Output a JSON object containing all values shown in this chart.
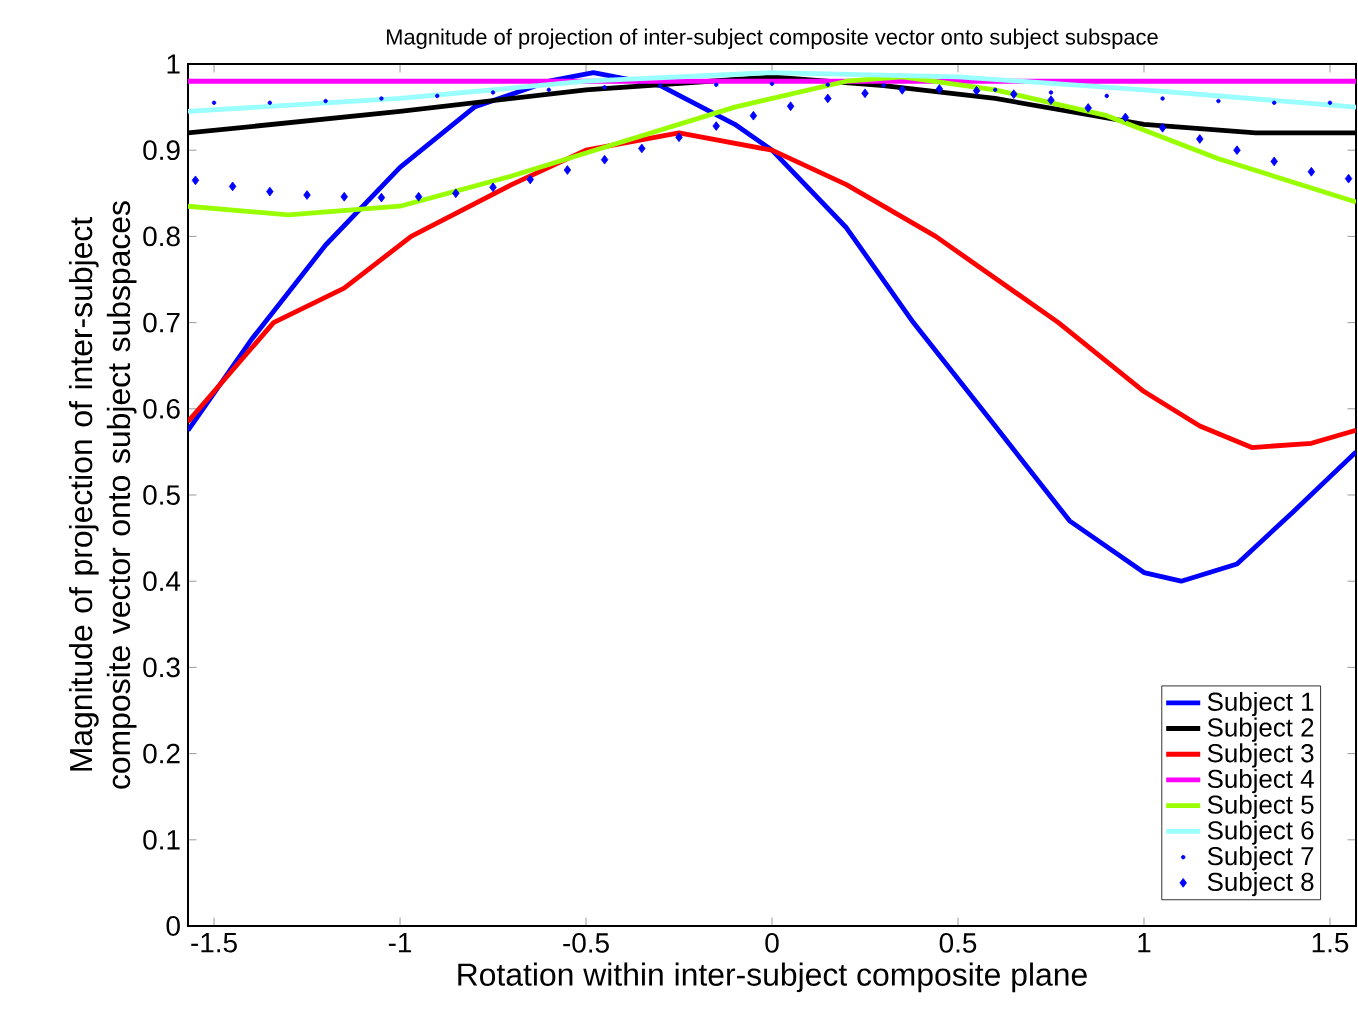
{
  "chart_data": {
    "type": "line",
    "title": "Magnitude of projection of inter-subject composite vector onto subject subspace",
    "xlabel": "Rotation within inter-subject composite plane",
    "ylabel": "Magnitude of projection of inter-subject composite vector onto subject subspaces",
    "xlim": [
      -1.57,
      1.57
    ],
    "ylim": [
      0,
      1
    ],
    "xticks": [
      -1.5,
      -1,
      -0.5,
      0,
      0.5,
      1,
      1.5
    ],
    "yticks": [
      0,
      0.1,
      0.2,
      0.3,
      0.4,
      0.5,
      0.6,
      0.7,
      0.8,
      0.9,
      1
    ],
    "grid": false,
    "legend": "bottom right",
    "series": [
      {
        "name": "Subject 1",
        "color": "#0000ff",
        "x": [
          -1.57,
          -1.4,
          -1.2,
          -1.0,
          -0.8,
          -0.6,
          -0.48,
          -0.3,
          -0.1,
          0,
          0.2,
          0.38,
          0.6,
          0.8,
          1.0,
          1.1,
          1.25,
          1.4,
          1.57
        ],
        "values": [
          0.575,
          0.68,
          0.79,
          0.88,
          0.95,
          0.98,
          0.99,
          0.975,
          0.93,
          0.9,
          0.81,
          0.7,
          0.58,
          0.47,
          0.41,
          0.4,
          0.42,
          0.48,
          0.55
        ]
      },
      {
        "name": "Subject 2",
        "color": "#000000",
        "x": [
          -1.57,
          -1.0,
          -0.5,
          0,
          0.3,
          0.6,
          1.0,
          1.3,
          1.57
        ],
        "values": [
          0.92,
          0.945,
          0.97,
          0.985,
          0.975,
          0.96,
          0.93,
          0.92,
          0.92
        ]
      },
      {
        "name": "Subject 3",
        "color": "#ff0000",
        "x": [
          -1.57,
          -1.34,
          -1.15,
          -0.97,
          -0.7,
          -0.5,
          -0.25,
          0,
          0.2,
          0.44,
          0.77,
          1.0,
          1.15,
          1.29,
          1.45,
          1.57
        ],
        "values": [
          0.585,
          0.7,
          0.74,
          0.8,
          0.86,
          0.9,
          0.92,
          0.9,
          0.86,
          0.8,
          0.7,
          0.62,
          0.58,
          0.555,
          0.56,
          0.575
        ]
      },
      {
        "name": "Subject 4",
        "color": "#ff00ff",
        "x": [
          -1.57,
          1.57
        ],
        "values": [
          0.98,
          0.98
        ]
      },
      {
        "name": "Subject 5",
        "color": "#99ff00",
        "x": [
          -1.57,
          -1.3,
          -1.0,
          -0.7,
          -0.4,
          -0.1,
          0.2,
          0.35,
          0.6,
          0.9,
          1.2,
          1.57
        ],
        "values": [
          0.835,
          0.825,
          0.835,
          0.87,
          0.91,
          0.95,
          0.98,
          0.985,
          0.97,
          0.94,
          0.89,
          0.84
        ]
      },
      {
        "name": "Subject 6",
        "color": "#99ffff",
        "x": [
          -1.57,
          -1.0,
          -0.5,
          0,
          0.5,
          1.0,
          1.57
        ],
        "values": [
          0.945,
          0.96,
          0.98,
          0.99,
          0.985,
          0.97,
          0.95
        ]
      },
      {
        "name": "Subject 7",
        "type": "scatter",
        "marker": "circle",
        "color": "#0000ff",
        "x": [
          -1.5,
          -1.35,
          -1.2,
          -1.05,
          -0.9,
          -0.75,
          -0.6,
          -0.45,
          -0.3,
          -0.15,
          0,
          0.15,
          0.3,
          0.45,
          0.6,
          0.75,
          0.9,
          1.05,
          1.2,
          1.35,
          1.5
        ],
        "values": [
          0.955,
          0.955,
          0.957,
          0.96,
          0.963,
          0.967,
          0.97,
          0.973,
          0.975,
          0.976,
          0.977,
          0.976,
          0.975,
          null,
          0.97,
          0.967,
          0.963,
          0.96,
          0.957,
          0.955,
          0.955
        ]
      },
      {
        "name": "Subject 8",
        "type": "scatter",
        "marker": "diamond",
        "color": "#0000ff",
        "x": [
          -1.55,
          -1.45,
          -1.35,
          -1.25,
          -1.15,
          -1.05,
          -0.95,
          -0.85,
          -0.75,
          -0.65,
          -0.55,
          -0.45,
          -0.35,
          -0.25,
          -0.15,
          -0.05,
          0.05,
          0.15,
          0.25,
          0.35,
          0.45,
          0.55,
          0.65,
          0.75,
          0.85,
          0.95,
          1.05,
          1.15,
          1.25,
          1.35,
          1.45,
          1.55
        ],
        "values": [
          0.865,
          0.858,
          0.852,
          0.848,
          0.846,
          0.845,
          0.846,
          0.85,
          0.857,
          0.866,
          0.877,
          0.889,
          0.902,
          0.915,
          0.928,
          0.94,
          0.951,
          0.96,
          0.966,
          0.97,
          0.971,
          0.969,
          0.965,
          0.958,
          0.949,
          0.938,
          0.926,
          0.913,
          0.9,
          0.887,
          0.875,
          0.867
        ]
      }
    ]
  }
}
